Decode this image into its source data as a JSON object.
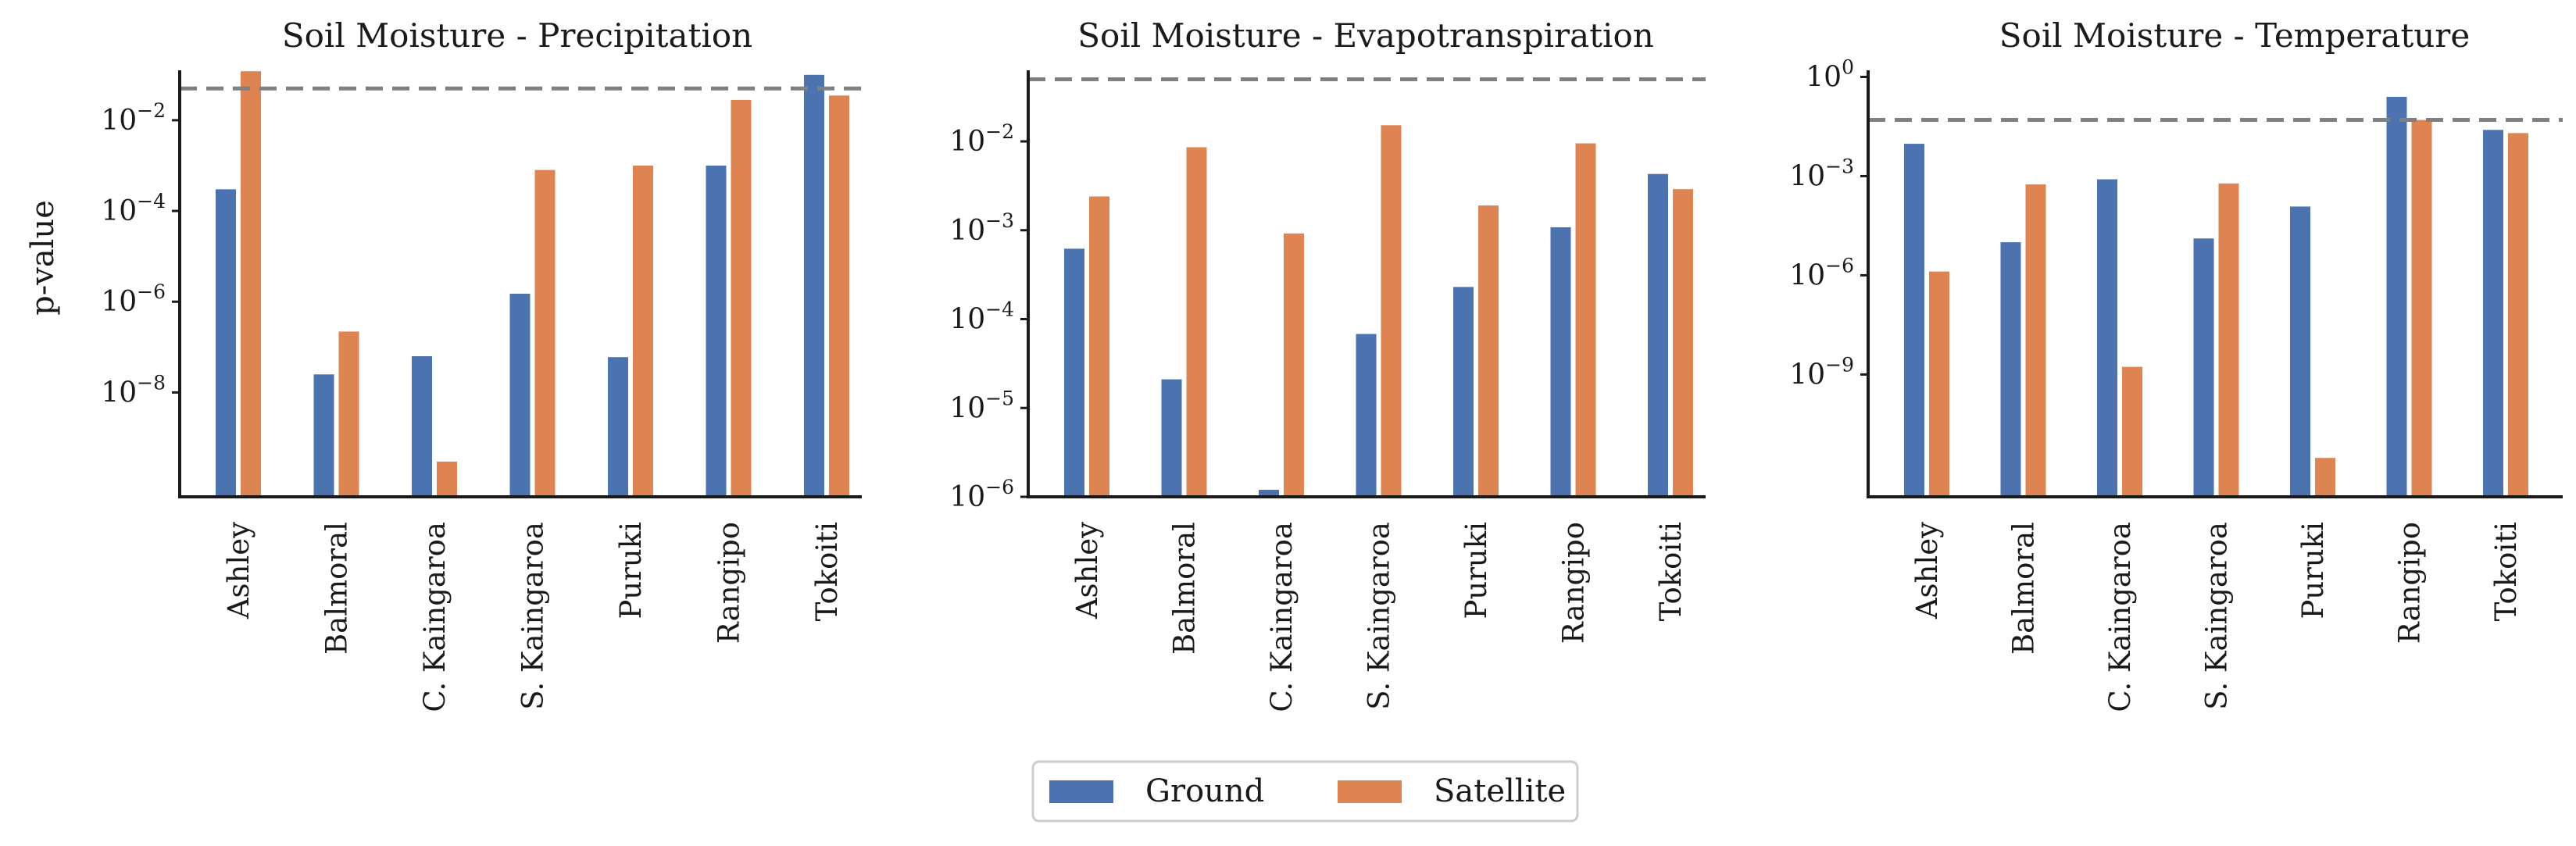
{
  "figure": {
    "ylabel": "p-value",
    "legend": [
      {
        "label": "Ground",
        "color": "#4c72b0"
      },
      {
        "label": "Satellite",
        "color": "#dd8452"
      }
    ]
  },
  "chart_data": [
    {
      "type": "bar",
      "title": "Soil Moisture - Precipitation",
      "ylabel": "p-value",
      "yscale": "log",
      "ylim_exp": [
        -10.3,
        -0.9
      ],
      "yticks": [
        {
          "exp": -2,
          "label": "10",
          "sup": "−2"
        },
        {
          "exp": -4,
          "label": "10",
          "sup": "−4"
        },
        {
          "exp": -6,
          "label": "10",
          "sup": "−6"
        },
        {
          "exp": -8,
          "label": "10",
          "sup": "−8"
        }
      ],
      "reference_line": 0.05,
      "categories": [
        "Ashley",
        "Balmoral",
        "C. Kaingaroa",
        "S. Kaingaroa",
        "Puruki",
        "Rangipo",
        "Tokoiti"
      ],
      "series": [
        {
          "name": "Ground",
          "values": [
            0.0003,
            2.5e-08,
            6.3e-08,
            1.5e-06,
            6e-08,
            0.001,
            0.1
          ]
        },
        {
          "name": "Satellite",
          "values": [
            0.12,
            2.2e-07,
            3e-10,
            0.0008,
            0.001,
            0.028,
            0.035
          ]
        }
      ]
    },
    {
      "type": "bar",
      "title": "Soil Moisture - Evapotranspiration",
      "ylabel": "",
      "yscale": "log",
      "ylim_exp": [
        -6.0,
        -1.2
      ],
      "yticks": [
        {
          "exp": -2,
          "label": "10",
          "sup": "−2"
        },
        {
          "exp": -3,
          "label": "10",
          "sup": "−3"
        },
        {
          "exp": -4,
          "label": "10",
          "sup": "−4"
        },
        {
          "exp": -5,
          "label": "10",
          "sup": "−5"
        },
        {
          "exp": -6,
          "label": "10",
          "sup": "−6"
        }
      ],
      "reference_line": 0.05,
      "categories": [
        "Ashley",
        "Balmoral",
        "C. Kaingaroa",
        "S. Kaingaroa",
        "Puruki",
        "Rangipo",
        "Tokoiti"
      ],
      "series": [
        {
          "name": "Ground",
          "values": [
            0.00062,
            2.1e-05,
            1.2e-06,
            6.8e-05,
            0.00023,
            0.00108,
            0.0043
          ]
        },
        {
          "name": "Satellite",
          "values": [
            0.0024,
            0.0086,
            0.00092,
            0.0152,
            0.0019,
            0.0095,
            0.0029
          ]
        }
      ]
    },
    {
      "type": "bar",
      "title": "Soil Moisture - Temperature",
      "ylabel": "",
      "yscale": "log",
      "ylim_exp": [
        -12.7,
        0.2
      ],
      "yticks": [
        {
          "exp": 0,
          "label": "10",
          "sup": "0"
        },
        {
          "exp": -3,
          "label": "10",
          "sup": "−3"
        },
        {
          "exp": -6,
          "label": "10",
          "sup": "−6"
        },
        {
          "exp": -9,
          "label": "10",
          "sup": "−9"
        }
      ],
      "reference_line": 0.05,
      "categories": [
        "Ashley",
        "Balmoral",
        "C. Kaingaroa",
        "S. Kaingaroa",
        "Puruki",
        "Rangipo",
        "Tokoiti"
      ],
      "series": [
        {
          "name": "Ground",
          "values": [
            0.0095,
            1e-05,
            0.0008,
            1.3e-05,
            0.00012,
            0.25,
            0.025
          ]
        },
        {
          "name": "Satellite",
          "values": [
            1.3e-06,
            0.00056,
            1.7e-09,
            0.0006,
            3e-12,
            0.05,
            0.02
          ]
        }
      ]
    }
  ]
}
